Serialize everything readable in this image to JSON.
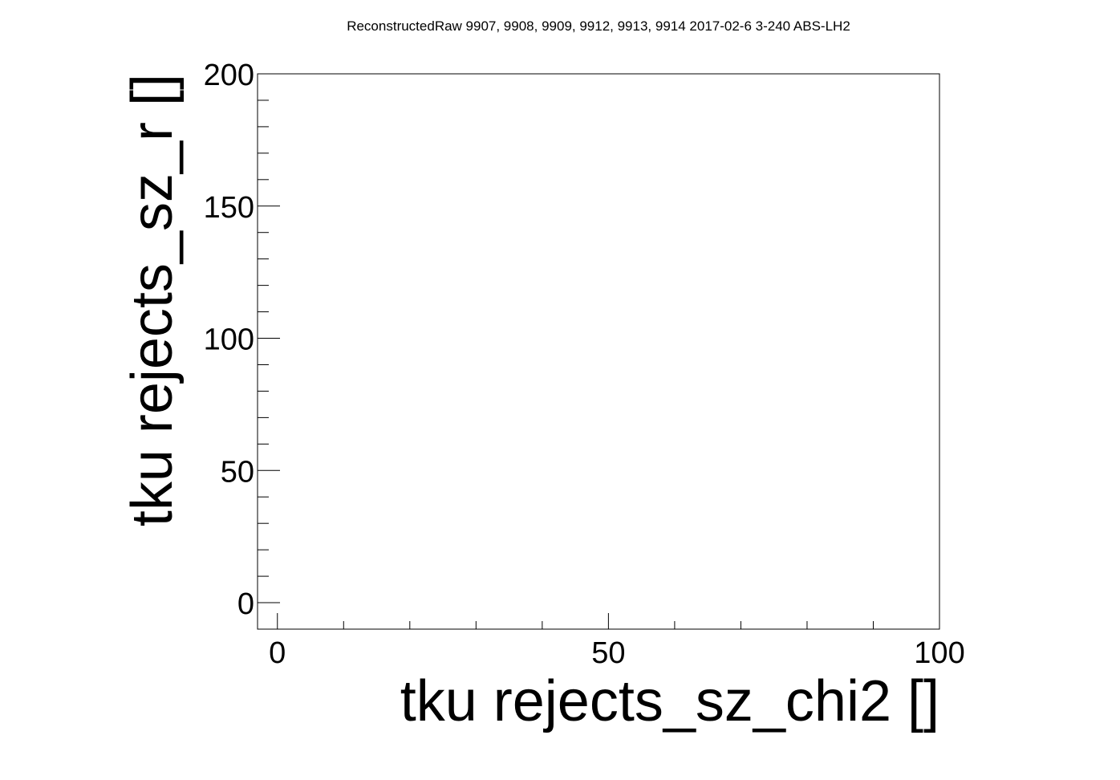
{
  "chart_data": {
    "type": "scatter",
    "title": "ReconstructedRaw 9907, 9908, 9909, 9912, 9913, 9914 2017-02-6 3-240 ABS-LH2",
    "xlabel": "tku rejects_sz_chi2 []",
    "ylabel": "tku rejects_sz_r []",
    "xlim": [
      -3,
      100
    ],
    "ylim": [
      -10,
      200
    ],
    "x_ticks": [
      0,
      50,
      100
    ],
    "y_ticks": [
      0,
      50,
      100,
      150,
      200
    ],
    "x_minor_step": 10,
    "y_minor_step": 10,
    "grid": false,
    "legend": "none",
    "series": [
      {
        "x": [],
        "y": []
      }
    ],
    "colors": {
      "axis": "#000000",
      "background": "#ffffff"
    }
  }
}
